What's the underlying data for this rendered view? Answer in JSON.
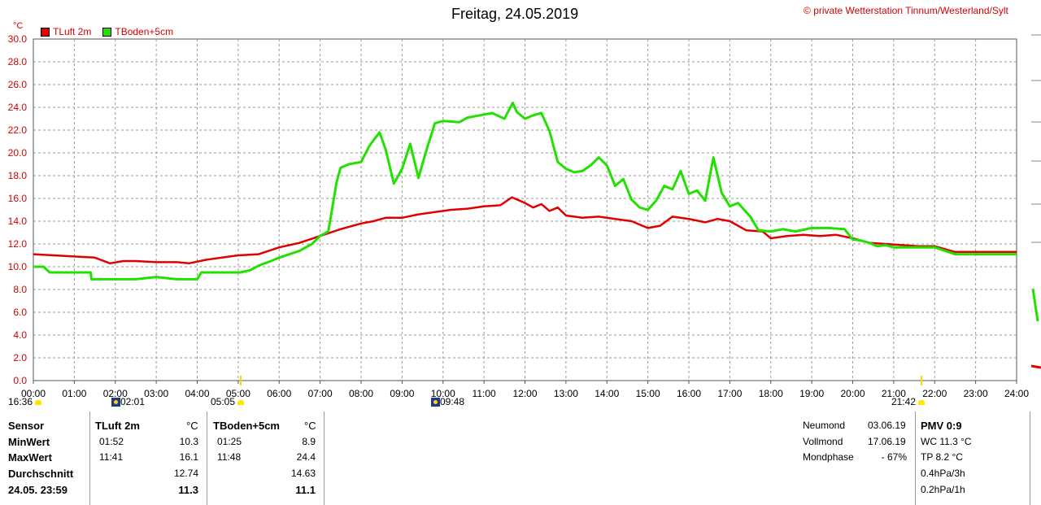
{
  "title": "Freitag, 24.05.2019",
  "copyright": "private Wetterstation Tinnum/Westerland/Sylt",
  "copyright_symbol": "©",
  "y_unit": "°C",
  "colors": {
    "tluft": "#e00000",
    "tboden": "#22e000",
    "axis_label": "#d40000",
    "grid": "#9a9a9a"
  },
  "legend": [
    {
      "name": "TLuft 2m",
      "color": "#e00000"
    },
    {
      "name": "TBoden+5cm",
      "color": "#22e000"
    }
  ],
  "events": {
    "sunrise": "05:05",
    "sunset": "21:42",
    "moonrise": "02:01",
    "moonset": "09:48",
    "daylength_start": "16:36"
  },
  "stats": {
    "header": {
      "sensor": "Sensor",
      "col1": "TLuft 2m",
      "col1_unit": "°C",
      "col2": "TBoden+5cm",
      "col2_unit": "°C"
    },
    "rows": [
      {
        "label": "MinWert",
        "t1": "01:52",
        "v1": "10.3",
        "t2": "01:25",
        "v2": "8.9"
      },
      {
        "label": "MaxWert",
        "t1": "11:41",
        "v1": "16.1",
        "t2": "11:48",
        "v2": "24.4"
      },
      {
        "label": "Durchschnitt",
        "t1": "",
        "v1": "12.74",
        "t2": "",
        "v2": "14.63"
      },
      {
        "label": "24.05. 23:59",
        "t1": "",
        "v1": "11.3",
        "t2": "",
        "v2": "11.1"
      }
    ],
    "moon": [
      {
        "label": "Neumond",
        "value": "03.06.19"
      },
      {
        "label": "Vollmond",
        "value": "17.06.19"
      },
      {
        "label": "Mondphase",
        "value": "- 67%"
      }
    ],
    "pmv": {
      "title": "PMV 0:9",
      "lines": [
        "WC 11.3 °C",
        "TP 8.2 °C",
        "0.4hPa/3h",
        "0.2hPa/1h"
      ]
    }
  },
  "chart_data": {
    "type": "line",
    "title": "Freitag, 24.05.2019",
    "ylabel": "°C",
    "ylim": [
      0,
      30
    ],
    "yticks": [
      "0.0",
      "2.0",
      "4.0",
      "6.0",
      "8.0",
      "10.0",
      "12.0",
      "14.0",
      "16.0",
      "18.0",
      "20.0",
      "22.0",
      "24.0",
      "26.0",
      "28.0",
      "30.0"
    ],
    "xlim": [
      0,
      24
    ],
    "xticks": [
      "00:00",
      "01:00",
      "02:00",
      "03:00",
      "04:00",
      "05:00",
      "06:00",
      "07:00",
      "08:00",
      "09:00",
      "10:00",
      "11:00",
      "12:00",
      "13:00",
      "14:00",
      "15:00",
      "16:00",
      "17:00",
      "18:00",
      "19:00",
      "20:00",
      "21:00",
      "22:00",
      "23:00",
      "24:00"
    ],
    "grid": true,
    "legend_position": "top-left",
    "series": [
      {
        "name": "TLuft 2m",
        "color": "#e00000",
        "x": [
          0,
          0.5,
          1,
          1.5,
          1.87,
          2.2,
          2.5,
          3,
          3.5,
          3.8,
          4.2,
          4.6,
          5,
          5.5,
          6,
          6.5,
          7,
          7.5,
          8,
          8.3,
          8.6,
          9,
          9.4,
          9.8,
          10.2,
          10.6,
          11,
          11.4,
          11.68,
          12,
          12.2,
          12.4,
          12.6,
          12.8,
          13,
          13.4,
          13.8,
          14.2,
          14.6,
          15,
          15.3,
          15.6,
          16,
          16.4,
          16.7,
          17,
          17.4,
          17.8,
          18,
          18.4,
          18.8,
          19.2,
          19.6,
          20,
          20.4,
          20.8,
          21.2,
          21.6,
          22,
          22.5,
          23,
          23.5,
          24
        ],
        "values": [
          11.1,
          11.0,
          10.9,
          10.8,
          10.3,
          10.5,
          10.5,
          10.4,
          10.4,
          10.3,
          10.6,
          10.8,
          11.0,
          11.1,
          11.7,
          12.1,
          12.7,
          13.3,
          13.8,
          14.0,
          14.3,
          14.3,
          14.6,
          14.8,
          15.0,
          15.1,
          15.3,
          15.4,
          16.1,
          15.6,
          15.2,
          15.5,
          14.9,
          15.2,
          14.5,
          14.3,
          14.4,
          14.2,
          14.0,
          13.4,
          13.6,
          14.4,
          14.2,
          13.9,
          14.2,
          14.0,
          13.2,
          13.1,
          12.5,
          12.7,
          12.8,
          12.7,
          12.8,
          12.5,
          12.1,
          12.0,
          11.9,
          11.8,
          11.8,
          11.3,
          11.3,
          11.3,
          11.3
        ]
      },
      {
        "name": "TBoden+5cm",
        "color": "#22e000",
        "x": [
          0,
          0.25,
          0.4,
          1,
          1.4,
          1.42,
          2,
          2.5,
          3,
          3.5,
          4,
          4.1,
          4.5,
          5,
          5.05,
          5.3,
          5.5,
          5.8,
          6,
          6.5,
          6.8,
          7,
          7.2,
          7.4,
          7.5,
          7.7,
          8,
          8.2,
          8.3,
          8.45,
          8.6,
          8.8,
          9,
          9.2,
          9.4,
          9.6,
          9.8,
          10,
          10.4,
          10.6,
          10.9,
          11.2,
          11.5,
          11.7,
          11.8,
          12,
          12.2,
          12.4,
          12.6,
          12.8,
          13,
          13.2,
          13.4,
          13.6,
          13.8,
          14,
          14.2,
          14.4,
          14.6,
          14.8,
          15,
          15.2,
          15.4,
          15.6,
          15.8,
          16,
          16.2,
          16.4,
          16.6,
          16.8,
          17,
          17.2,
          17.5,
          17.7,
          18,
          18.3,
          18.6,
          19,
          19.4,
          19.8,
          20,
          20.2,
          20.4,
          20.6,
          20.8,
          21,
          21.2,
          21.4,
          21.6,
          22,
          22.5,
          23,
          23.5,
          24
        ],
        "values": [
          10.0,
          10.0,
          9.5,
          9.5,
          9.5,
          8.9,
          8.9,
          8.9,
          9.1,
          8.9,
          8.9,
          9.5,
          9.5,
          9.5,
          9.5,
          9.7,
          10.1,
          10.5,
          10.8,
          11.4,
          12.0,
          12.7,
          13.1,
          17.4,
          18.7,
          19.0,
          19.2,
          20.6,
          21.1,
          21.8,
          20.3,
          17.3,
          18.6,
          20.8,
          17.8,
          20.3,
          22.6,
          22.8,
          22.7,
          23.1,
          23.3,
          23.5,
          23.0,
          24.4,
          23.6,
          23.0,
          23.3,
          23.5,
          21.9,
          19.2,
          18.6,
          18.3,
          18.4,
          18.9,
          19.6,
          18.9,
          17.1,
          17.7,
          15.9,
          15.2,
          15.0,
          15.8,
          17.1,
          16.8,
          18.4,
          16.4,
          16.7,
          15.8,
          19.6,
          16.5,
          15.3,
          15.6,
          14.4,
          13.2,
          13.1,
          13.3,
          13.1,
          13.4,
          13.4,
          13.3,
          12.4,
          12.3,
          12.1,
          11.8,
          11.9,
          11.7,
          11.7,
          11.7,
          11.7,
          11.7,
          11.1,
          11.1,
          11.1,
          11.1
        ]
      }
    ]
  }
}
